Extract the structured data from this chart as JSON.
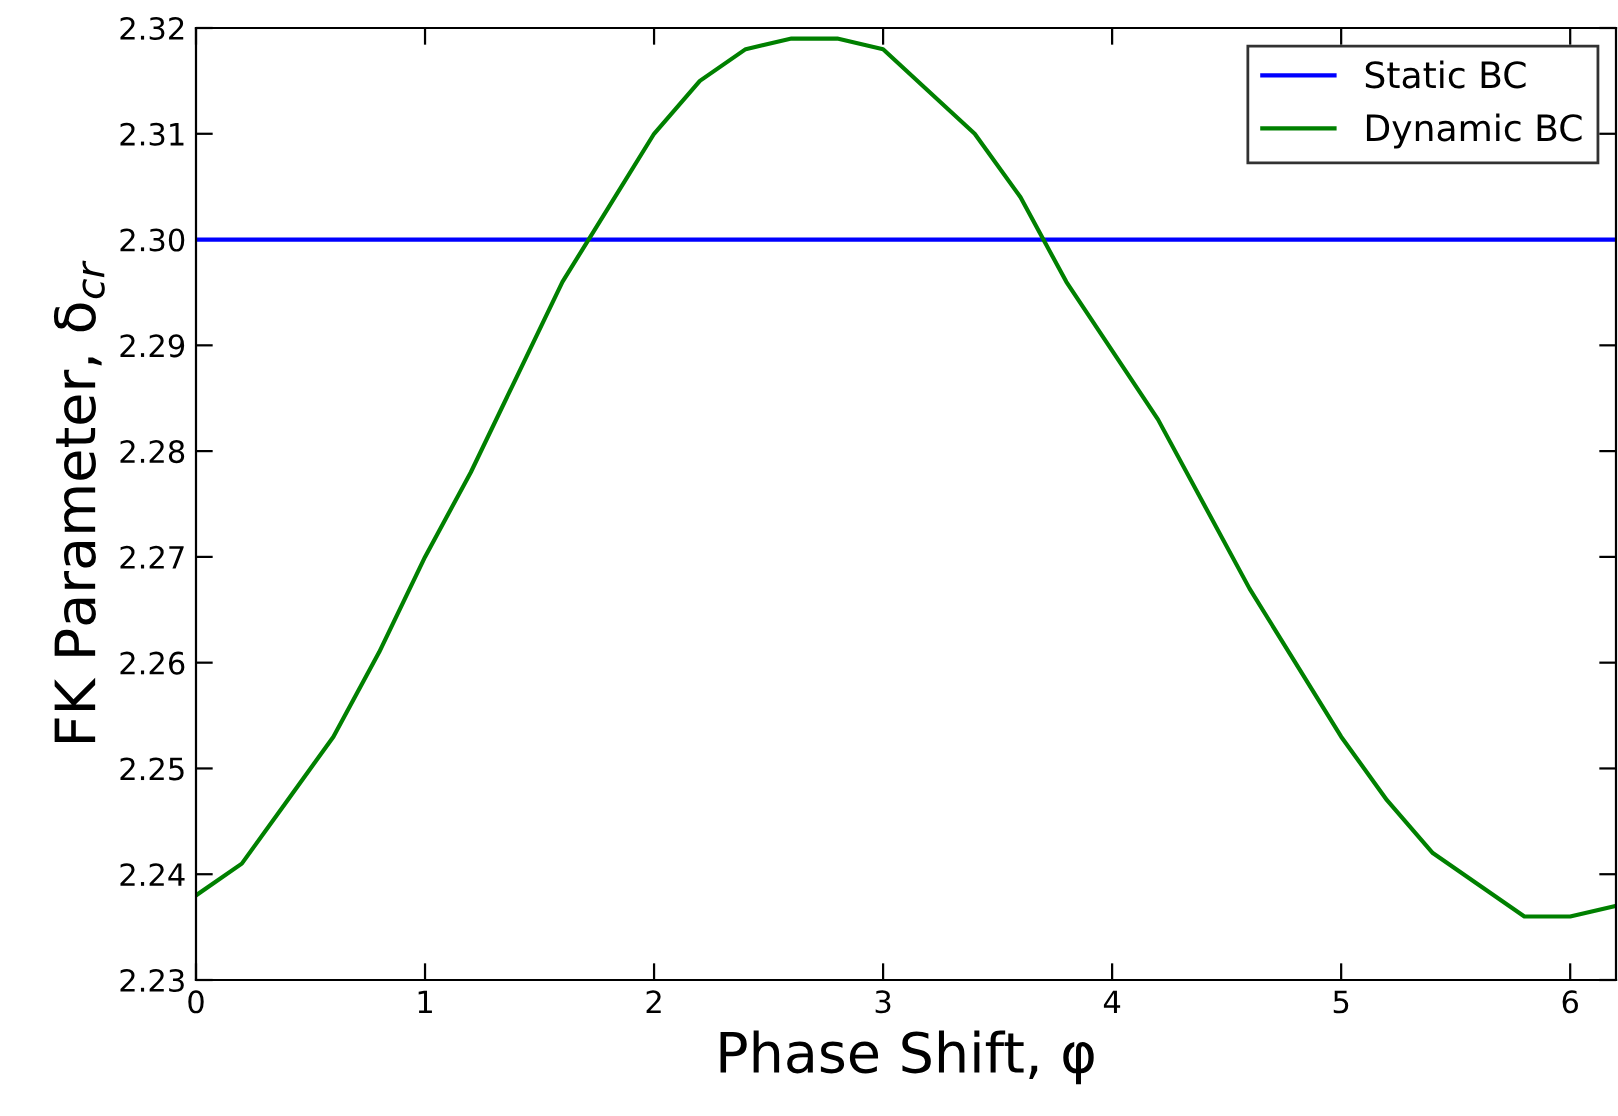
{
  "chart_data": {
    "type": "line",
    "xlabel": "Phase Shift, φ",
    "ylabel": "FK Parameter, δ$_{cr}$",
    "x": [
      0,
      0.2,
      0.4,
      0.6,
      0.8,
      1.0,
      1.2,
      1.4,
      1.6,
      1.8,
      2.0,
      2.2,
      2.4,
      2.6,
      2.8,
      3.0,
      3.2,
      3.4,
      3.6,
      3.8,
      4.0,
      4.2,
      4.4,
      4.6,
      4.8,
      5.0,
      5.2,
      5.4,
      5.6,
      5.8,
      6.0,
      6.2
    ],
    "series": [
      {
        "name": "Static BC",
        "color": "#0000ff",
        "values": [
          2.3,
          2.3,
          2.3,
          2.3,
          2.3,
          2.3,
          2.3,
          2.3,
          2.3,
          2.3,
          2.3,
          2.3,
          2.3,
          2.3,
          2.3,
          2.3,
          2.3,
          2.3,
          2.3,
          2.3,
          2.3,
          2.3,
          2.3,
          2.3,
          2.3,
          2.3,
          2.3,
          2.3,
          2.3,
          2.3,
          2.3,
          2.3
        ]
      },
      {
        "name": "Dynamic BC",
        "color": "#008000",
        "values": [
          2.238,
          2.241,
          2.247,
          2.253,
          2.261,
          2.27,
          2.278,
          2.287,
          2.296,
          2.303,
          2.31,
          2.315,
          2.318,
          2.319,
          2.319,
          2.318,
          2.314,
          2.31,
          2.304,
          2.296,
          2.2895,
          2.283,
          2.275,
          2.267,
          2.26,
          2.253,
          2.247,
          2.242,
          2.239,
          2.236,
          2.236,
          2.237
        ]
      }
    ],
    "xlim": [
      0,
      6.2
    ],
    "xticks": [
      0,
      1,
      2,
      3,
      4,
      5,
      6
    ],
    "ylim": [
      2.23,
      2.32
    ],
    "yticks": [
      2.23,
      2.24,
      2.25,
      2.26,
      2.27,
      2.28,
      2.29,
      {
        "value": 2.3,
        "label": "2.30"
      },
      2.31,
      2.32
    ],
    "grid": false,
    "legend": "top right",
    "marker": "none",
    "line_style": "solid"
  }
}
